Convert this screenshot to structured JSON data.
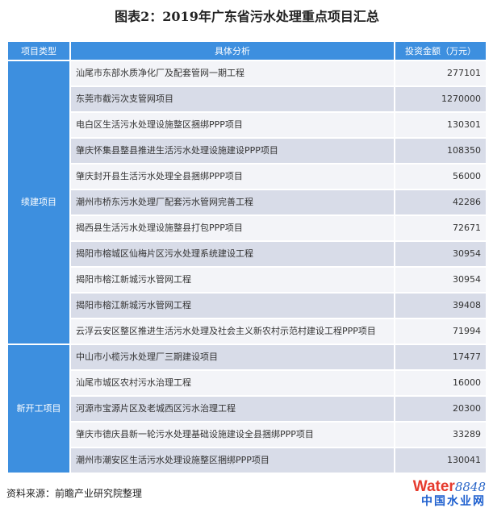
{
  "title": "图表2：2019年广东省污水处理重点项目汇总",
  "headers": [
    "项目类型",
    "具体分析",
    "投资金额（万元）"
  ],
  "groups": [
    {
      "type": "续建项目",
      "rows": [
        [
          "汕尾市东部水质净化厂及配套管网一期工程",
          "277101"
        ],
        [
          "东莞市截污次支管网项目",
          "1270000"
        ],
        [
          "电白区生活污水处理设施整区捆绑PPP项目",
          "130301"
        ],
        [
          "肇庆怀集县整县推进生活污水处理设施建设PPP项目",
          "108350"
        ],
        [
          "肇庆封开县生活污水处理全县捆绑PPP项目",
          "56000"
        ],
        [
          "潮州市桥东污水处理厂配套污水管网完善工程",
          "42286"
        ],
        [
          "揭西县生活污水处理设施整县打包PPP项目",
          "72671"
        ],
        [
          "揭阳市榕城区仙梅片区污水处理系统建设工程",
          "30954"
        ],
        [
          "揭阳市榕江新城污水管网工程",
          "30954"
        ],
        [
          "揭阳市榕江新城污水管网工程",
          "39408"
        ],
        [
          "云浮云安区整区推进生活污水处理及社会主义新农村示范村建设工程PPP项目",
          "71994"
        ]
      ]
    },
    {
      "type": "新开工项目",
      "rows": [
        [
          "中山市小榄污水处理厂三期建设项目",
          "17477"
        ],
        [
          "汕尾市城区农村污水治理工程",
          "16000"
        ],
        [
          "河源市宝源片区及老城西区污水治理工程",
          "20300"
        ],
        [
          "肇庆市德庆县新一轮污水处理基础设施建设全县捆绑PPP项目",
          "33289"
        ],
        [
          "潮州市潮安区生活污水处理设施整区捆绑PPP项目",
          "130041"
        ]
      ]
    }
  ],
  "source": "资料来源：前瞻产业研究院整理",
  "logo": {
    "word": "Water",
    "number": "8848",
    "cn": "中国水业网"
  },
  "colors": {
    "header": "#3d8fdf",
    "row_light": "#f3f4f8",
    "row_dark": "#d8dce8"
  }
}
